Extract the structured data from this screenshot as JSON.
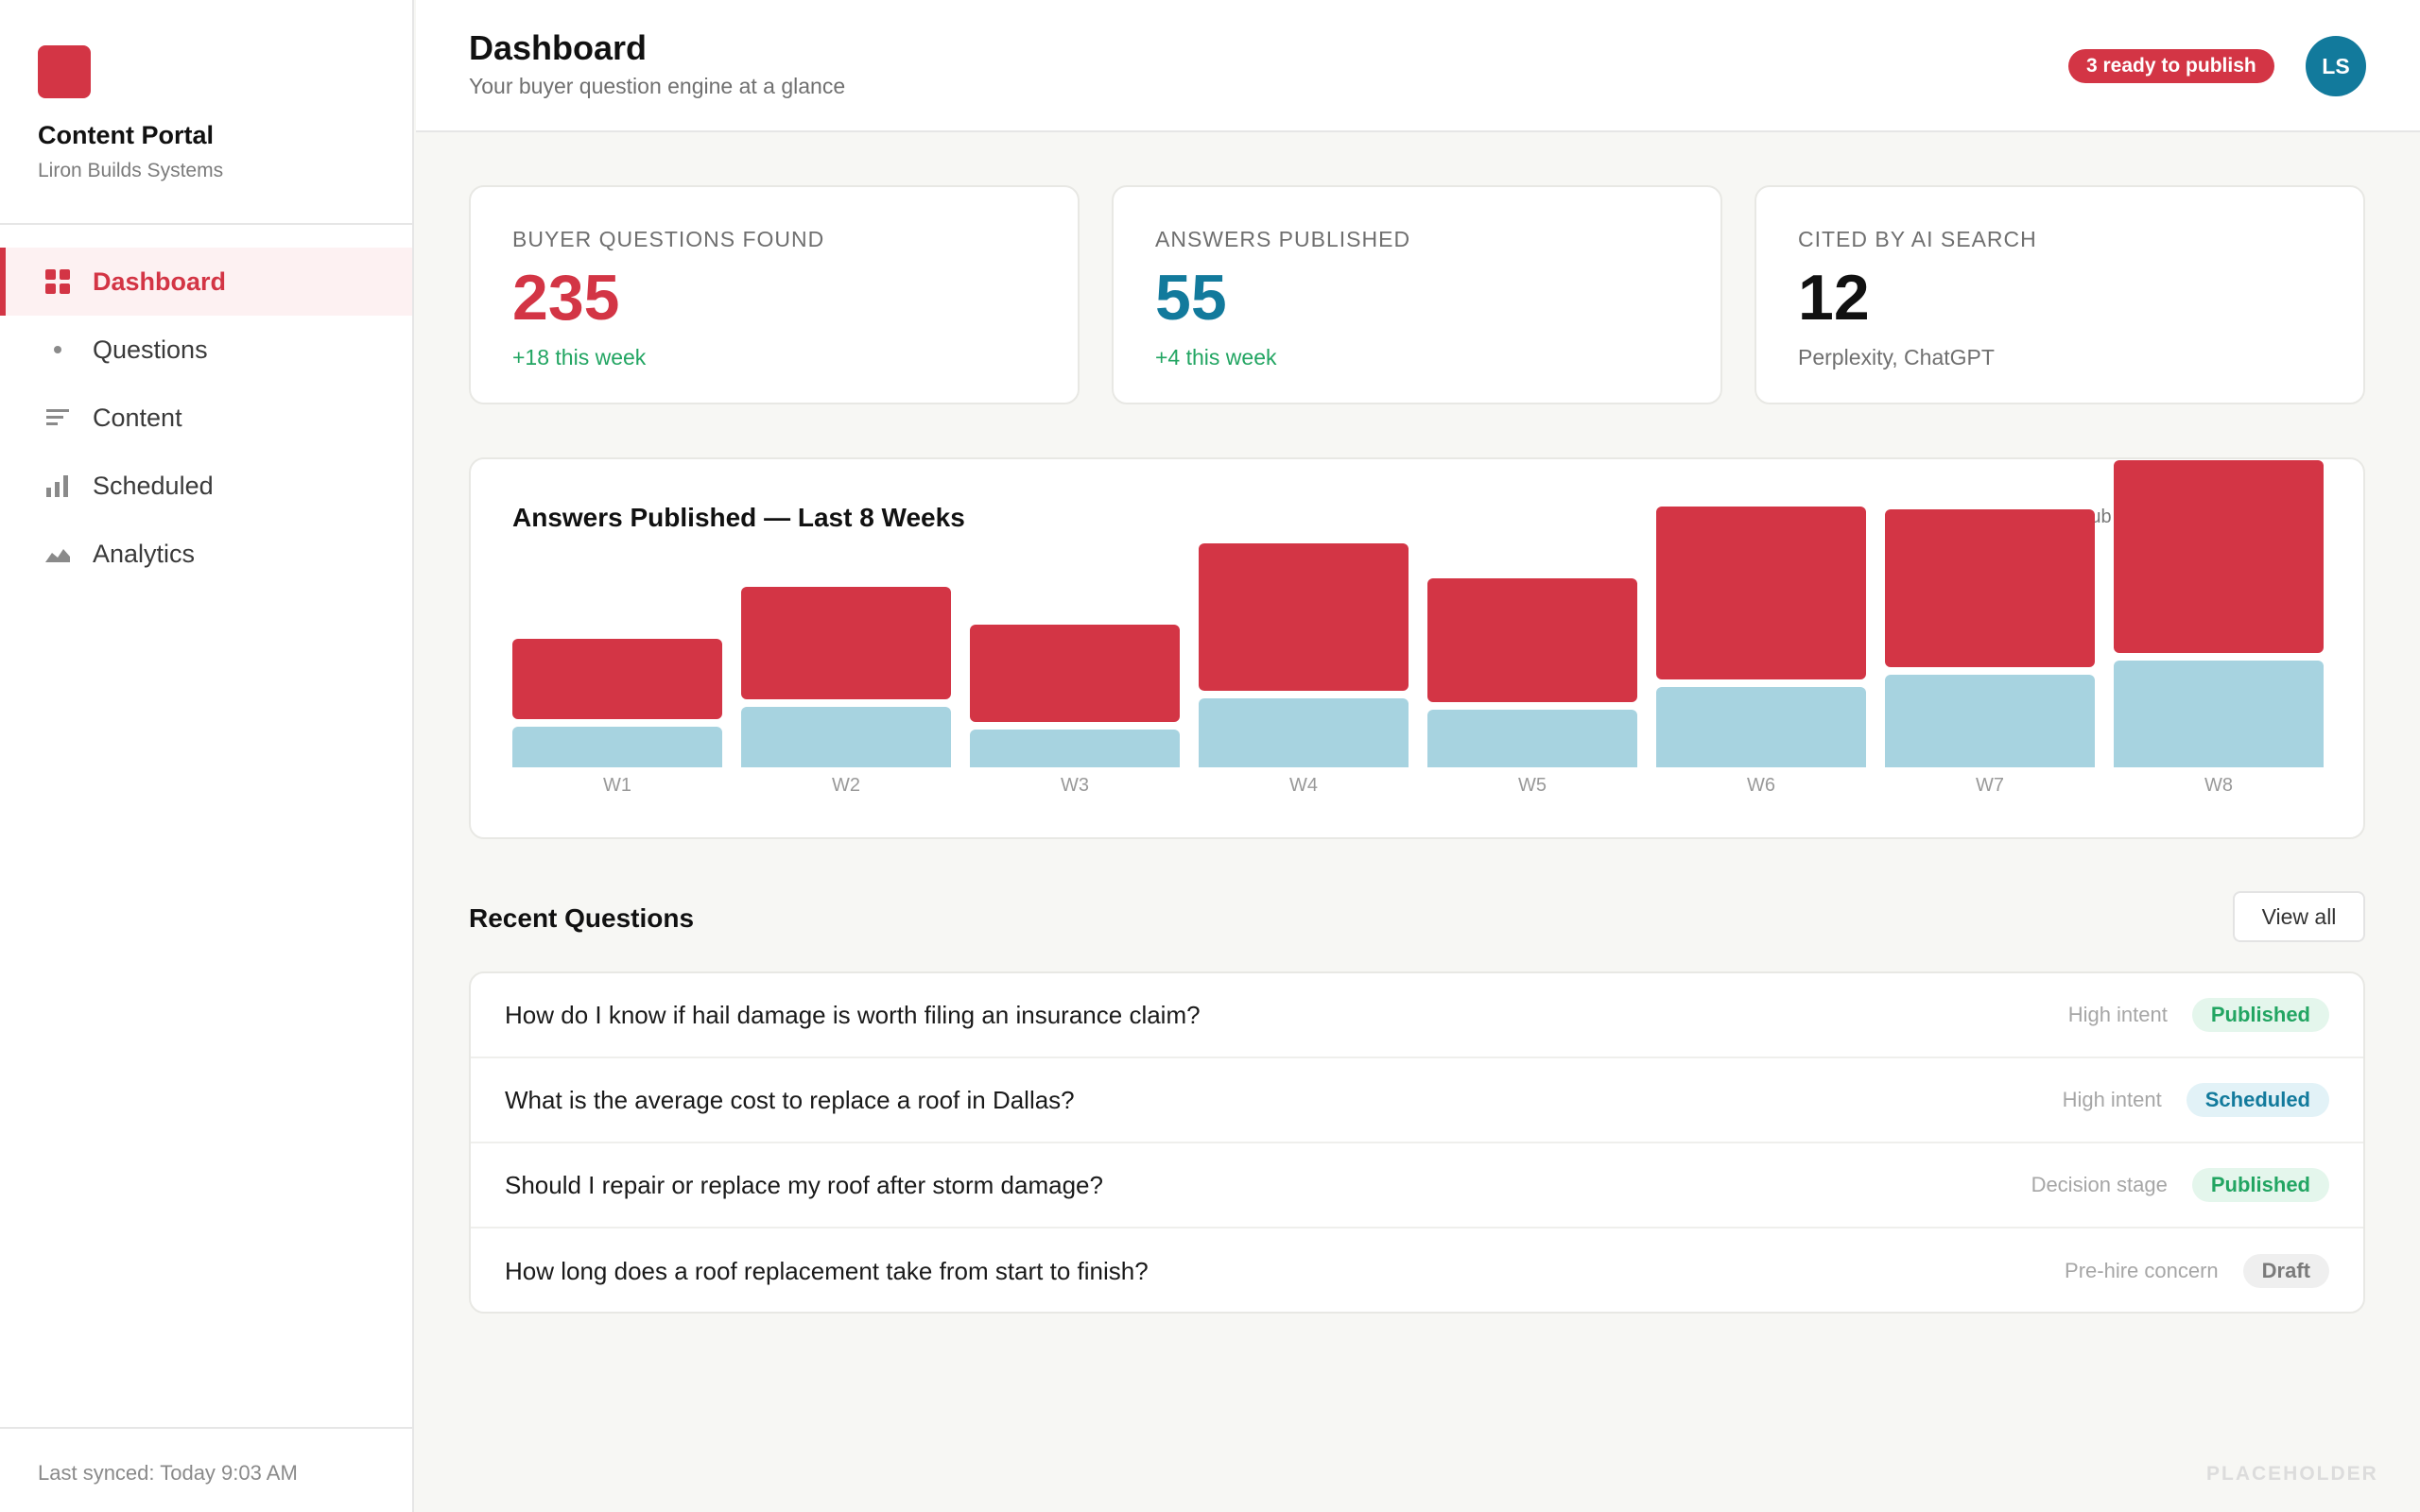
{
  "sidebar": {
    "brand_title": "Content Portal",
    "brand_sub": "Liron Builds Systems",
    "items": [
      {
        "label": "Dashboard",
        "icon": "grid-icon"
      },
      {
        "label": "Questions",
        "icon": "dot-icon"
      },
      {
        "label": "Content",
        "icon": "lines-icon"
      },
      {
        "label": "Scheduled",
        "icon": "bar-chart-icon"
      },
      {
        "label": "Analytics",
        "icon": "area-chart-icon"
      }
    ],
    "sync": "Last synced: Today 9:03 AM"
  },
  "header": {
    "title": "Dashboard",
    "subtitle": "Your buyer question engine at a glance",
    "badge": "3 ready to publish",
    "avatar": "LS"
  },
  "stats": [
    {
      "label": "BUYER QUESTIONS FOUND",
      "value": "235",
      "sub": "+18 this week",
      "color": "#d33545",
      "sub_color": "#22a562"
    },
    {
      "label": "ANSWERS PUBLISHED",
      "value": "55",
      "sub": "+4 this week",
      "color": "#127a9c",
      "sub_color": "#22a562"
    },
    {
      "label": "CITED BY AI SEARCH",
      "value": "12",
      "sub": "Perplexity, ChatGPT",
      "color": "#111111",
      "sub_color": "#707070"
    }
  ],
  "chart_data": {
    "type": "bar",
    "title": "Answers Published — Last 8 Weeks",
    "categories": [
      "W1",
      "W2",
      "W3",
      "W4",
      "W5",
      "W6",
      "W7",
      "W8"
    ],
    "series": [
      {
        "name": "Pub",
        "color": "#d33545",
        "values": [
          28,
          39,
          34,
          51,
          43,
          60,
          55,
          67
        ]
      },
      {
        "color": "#a7d3e0",
        "values": [
          14,
          21,
          13,
          24,
          20,
          28,
          32,
          37
        ]
      }
    ],
    "legend_position": "top-right"
  },
  "recent": {
    "title": "Recent Questions",
    "view_all": "View all",
    "rows": [
      {
        "question": "How do I know if hail damage is worth filing an insurance claim?",
        "intent": "High intent",
        "status": "Published",
        "status_class": "published"
      },
      {
        "question": "What is the average cost to replace a roof in Dallas?",
        "intent": "High intent",
        "status": "Scheduled",
        "status_class": "scheduled"
      },
      {
        "question": "Should I repair or replace my roof after storm damage?",
        "intent": "Decision stage",
        "status": "Published",
        "status_class": "published"
      },
      {
        "question": "How long does a roof replacement take from start to finish?",
        "intent": "Pre-hire concern",
        "status": "Draft",
        "status_class": "draft"
      }
    ]
  },
  "footer_mark": "PLACEHOLDER"
}
